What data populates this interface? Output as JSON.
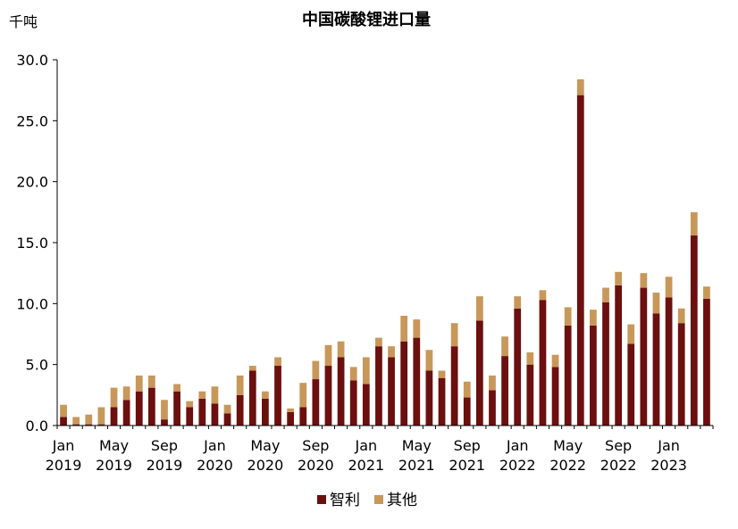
{
  "chart_data": {
    "type": "bar",
    "stacked": true,
    "title": "中国碳酸锂进口量",
    "unit_label": "千吨",
    "xlabel": "",
    "ylabel": "",
    "ylim": [
      0,
      30
    ],
    "y_ticks": [
      "0.0",
      "5.0",
      "10.0",
      "15.0",
      "20.0",
      "25.0",
      "30.0"
    ],
    "grid": false,
    "legend_position": "bottom",
    "x_tick_labels": [
      {
        "index": 0,
        "line1": "Jan",
        "line2": "2019"
      },
      {
        "index": 4,
        "line1": "May",
        "line2": "2019"
      },
      {
        "index": 8,
        "line1": "Sep",
        "line2": "2019"
      },
      {
        "index": 12,
        "line1": "Jan",
        "line2": "2020"
      },
      {
        "index": 16,
        "line1": "May",
        "line2": "2020"
      },
      {
        "index": 20,
        "line1": "Sep",
        "line2": "2020"
      },
      {
        "index": 24,
        "line1": "Jan",
        "line2": "2021"
      },
      {
        "index": 28,
        "line1": "May",
        "line2": "2021"
      },
      {
        "index": 32,
        "line1": "Sep",
        "line2": "2021"
      },
      {
        "index": 36,
        "line1": "Jan",
        "line2": "2022"
      },
      {
        "index": 40,
        "line1": "May",
        "line2": "2022"
      },
      {
        "index": 44,
        "line1": "Sep",
        "line2": "2022"
      },
      {
        "index": 48,
        "line1": "Jan",
        "line2": "2023"
      }
    ],
    "categories": [
      "2019-01",
      "2019-02",
      "2019-03",
      "2019-04",
      "2019-05",
      "2019-06",
      "2019-07",
      "2019-08",
      "2019-09",
      "2019-10",
      "2019-11",
      "2019-12",
      "2020-01",
      "2020-02",
      "2020-03",
      "2020-04",
      "2020-05",
      "2020-06",
      "2020-07",
      "2020-08",
      "2020-09",
      "2020-10",
      "2020-11",
      "2020-12",
      "2021-01",
      "2021-02",
      "2021-03",
      "2021-04",
      "2021-05",
      "2021-06",
      "2021-07",
      "2021-08",
      "2021-09",
      "2021-10",
      "2021-11",
      "2021-12",
      "2022-01",
      "2022-02",
      "2022-03",
      "2022-04",
      "2022-05",
      "2022-06",
      "2022-07",
      "2022-08",
      "2022-09",
      "2022-10",
      "2022-11",
      "2022-12",
      "2023-01",
      "2023-02",
      "2023-03",
      "2023-04"
    ],
    "series": [
      {
        "name": "智利",
        "color": "#6b0f0f",
        "values": [
          0.7,
          0.1,
          0.1,
          0.1,
          1.5,
          2.1,
          2.8,
          3.1,
          0.5,
          2.8,
          1.5,
          2.2,
          1.8,
          1.0,
          2.5,
          4.5,
          2.2,
          4.9,
          1.1,
          1.5,
          3.8,
          4.9,
          5.6,
          3.7,
          3.4,
          6.5,
          5.6,
          6.9,
          7.2,
          4.5,
          3.9,
          6.5,
          2.3,
          8.6,
          2.9,
          5.7,
          9.6,
          5.0,
          10.3,
          4.8,
          8.2,
          27.1,
          8.2,
          10.1,
          11.5,
          6.7,
          11.3,
          9.2,
          10.5,
          8.4,
          15.6,
          10.4
        ]
      },
      {
        "name": "其他",
        "color": "#c8975a",
        "values": [
          1.0,
          0.6,
          0.8,
          1.4,
          1.6,
          1.1,
          1.3,
          1.0,
          1.6,
          0.6,
          0.5,
          0.6,
          1.4,
          0.7,
          1.6,
          0.4,
          0.6,
          0.7,
          0.3,
          2.0,
          1.5,
          1.7,
          1.3,
          1.1,
          2.2,
          0.7,
          0.9,
          2.1,
          1.5,
          1.7,
          0.6,
          1.9,
          1.3,
          2.0,
          1.2,
          1.6,
          1.0,
          1.0,
          0.8,
          1.0,
          1.5,
          1.3,
          1.3,
          1.2,
          1.1,
          1.6,
          1.2,
          1.7,
          1.7,
          1.2,
          1.9,
          1.0
        ]
      }
    ]
  }
}
